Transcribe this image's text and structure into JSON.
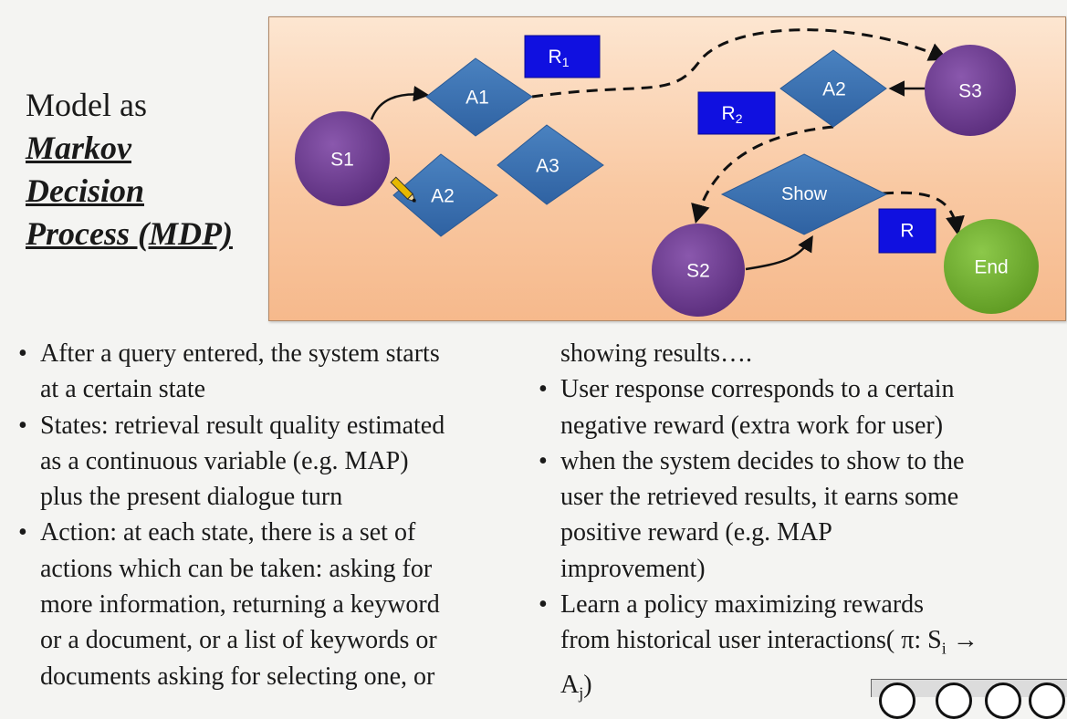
{
  "title": {
    "line1": "Model as",
    "line2": "Markov",
    "line3": "Decision",
    "line4": "Process (MDP)"
  },
  "diagram": {
    "background": "#f9c9a3",
    "state_color": "#6b3a8e",
    "action_color": "#3a6fb0",
    "reward_color": "#1010e0",
    "end_color": "#6fae2c",
    "states": {
      "s1": "S1",
      "s2": "S2",
      "s3": "S3",
      "end": "End"
    },
    "actions": {
      "a1": "A1",
      "a2_left": "A2",
      "a3": "A3",
      "a2_right": "A2",
      "show": "Show"
    },
    "rewards": {
      "r1_base": "R",
      "r1_sub": "1",
      "r2_base": "R",
      "r2_sub": "2",
      "r": "R"
    }
  },
  "left_column": {
    "b1_l1": "After a query entered, the system starts",
    "b1_l2": "at a certain state",
    "b2_l1": "States: retrieval result quality estimated",
    "b2_l2": "as a continuous variable (e.g. MAP)",
    "b2_l3": "plus the present dialogue turn",
    "b3_l1": "Action: at each state, there is a set of",
    "b3_l2": "actions which can be taken: asking for",
    "b3_l3": "more information, returning a keyword",
    "b3_l4": "or a document, or a list of keywords or",
    "b3_l5": "documents asking for selecting one, or"
  },
  "right_column": {
    "cont_l1": "showing results….",
    "b1_l1": "User response corresponds to a certain",
    "b1_l2": "negative reward (extra work for user)",
    "b2_l1": "when the system decides to show to the",
    "b2_l2": "user the retrieved results, it earns some",
    "b2_l3": "positive reward (e.g. MAP",
    "b2_l4": "improvement)",
    "b3_l1": "Learn a policy maximizing rewards",
    "b3_l2_pre": "from historical user interactions( π: S",
    "b3_l2_sub": "i",
    "b3_l2_arrow": " →",
    "b3_l3_base": "A",
    "b3_l3_sub": "j",
    "b3_l3_end": ")"
  },
  "bullet_char": "•"
}
